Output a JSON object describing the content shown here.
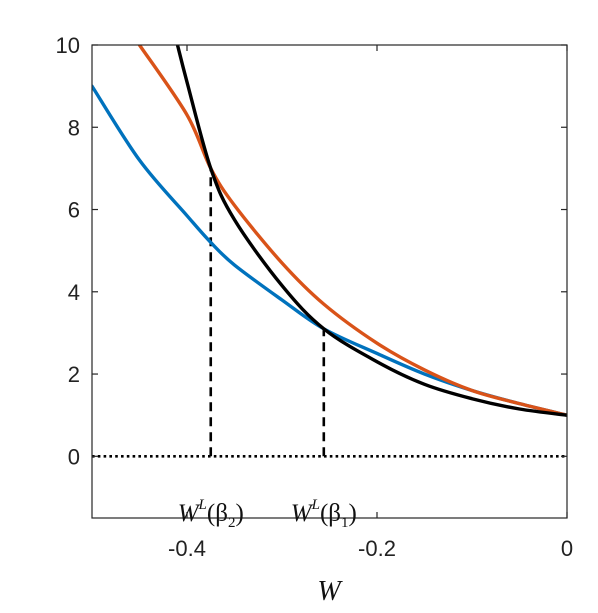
{
  "chart_data": {
    "type": "line",
    "xlabel": "W",
    "ylabel": "",
    "xlim": [
      -0.5,
      0
    ],
    "ylim": [
      -1.5,
      10
    ],
    "x_ticks": [
      -0.4,
      -0.2,
      0
    ],
    "x_tick_labels": [
      "-0.4",
      "-0.2",
      "0"
    ],
    "y_ticks": [
      0,
      2,
      4,
      6,
      8,
      10
    ],
    "y_tick_labels": [
      "0",
      "2",
      "4",
      "6",
      "8",
      "10"
    ],
    "grid": false,
    "series": [
      {
        "color": "#0072BD",
        "x": [
          -0.5,
          -0.45,
          -0.4,
          -0.375,
          -0.35,
          -0.3,
          -0.256,
          -0.2,
          -0.15,
          -0.1,
          -0.05,
          0
        ],
        "y": [
          9.0,
          7.2,
          5.85,
          5.2,
          4.65,
          3.8,
          3.1,
          2.5,
          2.0,
          1.6,
          1.28,
          1.0
        ]
      },
      {
        "color": "#D95319",
        "x": [
          -0.45,
          -0.4,
          -0.375,
          -0.35,
          -0.3,
          -0.256,
          -0.2,
          -0.15,
          -0.1,
          -0.05,
          0
        ],
        "y": [
          10.0,
          8.3,
          7.0,
          6.1,
          4.7,
          3.7,
          2.75,
          2.1,
          1.6,
          1.28,
          1.0
        ]
      },
      {
        "color": "#000000",
        "x": [
          -0.41,
          -0.4,
          -0.375,
          -0.35,
          -0.3,
          -0.256,
          -0.2,
          -0.15,
          -0.1,
          -0.05,
          0
        ],
        "y": [
          10.0,
          9.1,
          7.0,
          5.75,
          4.15,
          3.1,
          2.3,
          1.75,
          1.4,
          1.15,
          1.0
        ]
      }
    ],
    "reference_lines": [
      {
        "style": "dotted",
        "orientation": "horizontal",
        "y": 0
      },
      {
        "style": "dashed",
        "orientation": "vertical",
        "x": -0.375,
        "y_from": 0,
        "y_to": 7.0
      },
      {
        "style": "dashed",
        "orientation": "vertical",
        "x": -0.256,
        "y_from": 0,
        "y_to": 3.1
      }
    ],
    "annotations": [
      {
        "base": "W",
        "sup": "L",
        "open": "(β",
        "sub": "2",
        "close": ")",
        "x": -0.375,
        "y": -0.75
      },
      {
        "base": "W",
        "sup": "L",
        "open": "(β",
        "sub": "1",
        "close": ")",
        "x": -0.256,
        "y": -0.75
      }
    ]
  }
}
